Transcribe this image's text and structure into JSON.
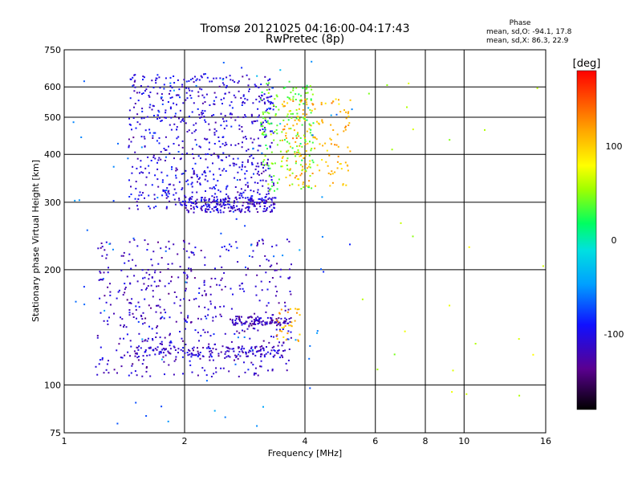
{
  "chart_data": {
    "type": "scatter",
    "title": "Tromsø 20121025 04:16:00-04:17:43",
    "subtitle": "RwPretec (8p)",
    "xlabel": "Frequency [MHz]",
    "ylabel": "Stationary phase Virtual Height [km]",
    "x_scale": "log",
    "y_scale": "log",
    "xlim": [
      1,
      16
    ],
    "ylim": [
      75,
      750
    ],
    "x_ticks": [
      1,
      2,
      4,
      6,
      8,
      10,
      16
    ],
    "y_ticks": [
      75,
      100,
      200,
      300,
      400,
      500,
      600,
      750
    ],
    "grid": true,
    "phase_stats": {
      "heading": "Phase",
      "line_o": "mean, sd,O: -94.1, 17.8",
      "line_x": "mean, sd,X:  86.3, 22.9"
    },
    "colorbar": {
      "unit": "[deg]",
      "ticks": [
        100,
        0,
        -100
      ],
      "range": [
        -180,
        180
      ]
    },
    "clusters": [
      {
        "f": [
          1.45,
          3.35
        ],
        "h": [
          285,
          650
        ],
        "phase": -105,
        "n": 720
      },
      {
        "f": [
          2.0,
          3.4
        ],
        "h": [
          282,
          310
        ],
        "phase": -110,
        "n": 180
      },
      {
        "f": [
          3.1,
          4.2
        ],
        "h": [
          320,
          620
        ],
        "phase": 40,
        "n": 180
      },
      {
        "f": [
          3.5,
          5.2
        ],
        "h": [
          330,
          560
        ],
        "phase": 110,
        "n": 170
      },
      {
        "f": [
          1.2,
          3.7
        ],
        "h": [
          105,
          240
        ],
        "phase": -115,
        "n": 520
      },
      {
        "f": [
          1.5,
          3.6
        ],
        "h": [
          118,
          126
        ],
        "phase": -110,
        "n": 160
      },
      {
        "f": [
          2.6,
          3.7
        ],
        "h": [
          143,
          151
        ],
        "phase": -120,
        "n": 110
      },
      {
        "f": [
          3.4,
          3.9
        ],
        "h": [
          130,
          160
        ],
        "phase": 110,
        "n": 30
      },
      {
        "f": [
          1.05,
          5.5
        ],
        "h": [
          78,
          700
        ],
        "phase": -60,
        "n": 90
      },
      {
        "f": [
          5.5,
          16
        ],
        "h": [
          80,
          650
        ],
        "phase": 60,
        "n": 25
      }
    ]
  }
}
